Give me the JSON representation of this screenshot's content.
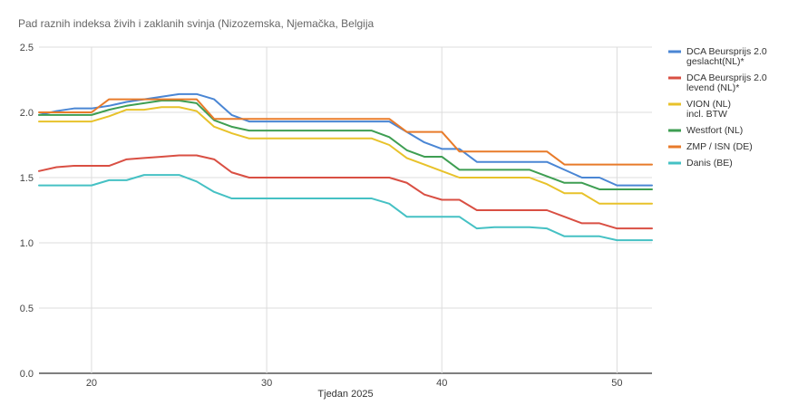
{
  "chart_data": {
    "type": "line",
    "title": "Pad raznih indeksa živih i zaklanih svinja (Nizozemska, Njemačka, Belgija",
    "xlabel": "Tjedan 2025",
    "ylabel": "",
    "xlim": [
      17,
      52
    ],
    "ylim": [
      0,
      2.5
    ],
    "xticks": [
      20,
      30,
      40,
      50
    ],
    "yticks": [
      0.0,
      0.5,
      1.0,
      1.5,
      2.0,
      2.5
    ],
    "ytick_labels": [
      "0.0",
      "0.5",
      "1.0",
      "1.5",
      "2.0",
      "2.5"
    ],
    "grid": true,
    "legend_position": "right",
    "x": [
      17,
      18,
      19,
      20,
      21,
      22,
      23,
      24,
      25,
      26,
      27,
      28,
      29,
      30,
      31,
      32,
      33,
      34,
      35,
      36,
      37,
      38,
      39,
      40,
      41,
      42,
      43,
      44,
      45,
      46,
      47,
      48,
      49,
      50,
      51,
      52
    ],
    "series": [
      {
        "name": "DCA Beursprijs 2.0 geslacht(NL)*",
        "legend_lines": [
          "DCA Beursprijs 2.0",
          "geslacht(NL)*"
        ],
        "color": "#4a86d4",
        "values": [
          1.98,
          2.01,
          2.03,
          2.03,
          2.05,
          2.08,
          2.1,
          2.12,
          2.14,
          2.14,
          2.1,
          1.98,
          1.93,
          1.93,
          1.93,
          1.93,
          1.93,
          1.93,
          1.93,
          1.93,
          1.93,
          1.85,
          1.77,
          1.72,
          1.72,
          1.62,
          1.62,
          1.62,
          1.62,
          1.62,
          1.56,
          1.5,
          1.5,
          1.44,
          1.44,
          1.44
        ]
      },
      {
        "name": "DCA Beursprijs 2.0 levend (NL)*",
        "legend_lines": [
          "DCA Beursprijs 2.0",
          "levend (NL)*"
        ],
        "color": "#d94f43",
        "values": [
          1.55,
          1.58,
          1.59,
          1.59,
          1.59,
          1.64,
          1.65,
          1.66,
          1.67,
          1.67,
          1.64,
          1.54,
          1.5,
          1.5,
          1.5,
          1.5,
          1.5,
          1.5,
          1.5,
          1.5,
          1.5,
          1.46,
          1.37,
          1.33,
          1.33,
          1.25,
          1.25,
          1.25,
          1.25,
          1.25,
          1.2,
          1.15,
          1.15,
          1.11,
          1.11,
          1.11
        ]
      },
      {
        "name": "VION (NL) incl. BTW",
        "legend_lines": [
          "VION (NL)",
          "incl. BTW"
        ],
        "color": "#e8c22a",
        "values": [
          1.93,
          1.93,
          1.93,
          1.93,
          1.97,
          2.02,
          2.02,
          2.04,
          2.04,
          2.01,
          1.89,
          1.84,
          1.8,
          1.8,
          1.8,
          1.8,
          1.8,
          1.8,
          1.8,
          1.8,
          1.75,
          1.65,
          1.6,
          1.55,
          1.5,
          1.5,
          1.5,
          1.5,
          1.5,
          1.45,
          1.38,
          1.38,
          1.3,
          1.3,
          1.3,
          1.3
        ]
      },
      {
        "name": "Westfort (NL)",
        "legend_lines": [
          "Westfort (NL)"
        ],
        "color": "#3e9e52",
        "values": [
          1.98,
          1.98,
          1.98,
          1.98,
          2.02,
          2.05,
          2.07,
          2.09,
          2.09,
          2.07,
          1.94,
          1.89,
          1.86,
          1.86,
          1.86,
          1.86,
          1.86,
          1.86,
          1.86,
          1.86,
          1.81,
          1.71,
          1.66,
          1.66,
          1.56,
          1.56,
          1.56,
          1.56,
          1.56,
          1.51,
          1.46,
          1.46,
          1.41,
          1.41,
          1.41,
          1.41
        ]
      },
      {
        "name": "ZMP / ISN (DE)",
        "legend_lines": [
          "ZMP / ISN (DE)"
        ],
        "color": "#e87b2a",
        "values": [
          2.0,
          2.0,
          2.0,
          2.0,
          2.1,
          2.1,
          2.1,
          2.1,
          2.1,
          2.1,
          1.95,
          1.95,
          1.95,
          1.95,
          1.95,
          1.95,
          1.95,
          1.95,
          1.95,
          1.95,
          1.95,
          1.85,
          1.85,
          1.85,
          1.7,
          1.7,
          1.7,
          1.7,
          1.7,
          1.7,
          1.6,
          1.6,
          1.6,
          1.6,
          1.6,
          1.6
        ]
      },
      {
        "name": "Danis (BE)",
        "legend_lines": [
          "Danis (BE)"
        ],
        "color": "#45c1c4",
        "values": [
          1.44,
          1.44,
          1.44,
          1.44,
          1.48,
          1.48,
          1.52,
          1.52,
          1.52,
          1.47,
          1.39,
          1.34,
          1.34,
          1.34,
          1.34,
          1.34,
          1.34,
          1.34,
          1.34,
          1.34,
          1.3,
          1.2,
          1.2,
          1.2,
          1.2,
          1.11,
          1.12,
          1.12,
          1.12,
          1.11,
          1.05,
          1.05,
          1.05,
          1.02,
          1.02,
          1.02
        ]
      }
    ]
  }
}
